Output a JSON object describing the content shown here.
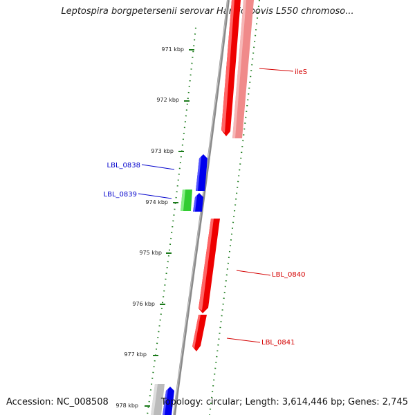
{
  "title": "Leptospira borgpetersenii serovar Hardjo-bovis L550 chromoso...",
  "footer": {
    "accession": "Accession: NC_008508",
    "summary": "Topology: circular; Length: 3,614,446 bp; Genes: 2,745"
  },
  "ticks": [
    "971 kbp",
    "972 kbp",
    "973 kbp",
    "974 kbp",
    "975 kbp",
    "976 kbp",
    "977 kbp",
    "978 kbp"
  ],
  "gene_labels": [
    {
      "text": "ileS",
      "color": "#d40000"
    },
    {
      "text": "LBL_0838",
      "color": "#0000cc"
    },
    {
      "text": "LBL_0839",
      "color": "#0000cc"
    },
    {
      "text": "LBL_0840",
      "color": "#d40000"
    },
    {
      "text": "LBL_0841",
      "color": "#d40000"
    }
  ],
  "colors": {
    "backbone": "#8c8c8c",
    "tick_track": "#1a7a1a",
    "forward_gene": "#ee0000",
    "forward_gene_light": "#f08080",
    "cds_blue": "#0000ee",
    "rna_green": "#33cc33",
    "grey_feature": "#bbbbbb"
  }
}
